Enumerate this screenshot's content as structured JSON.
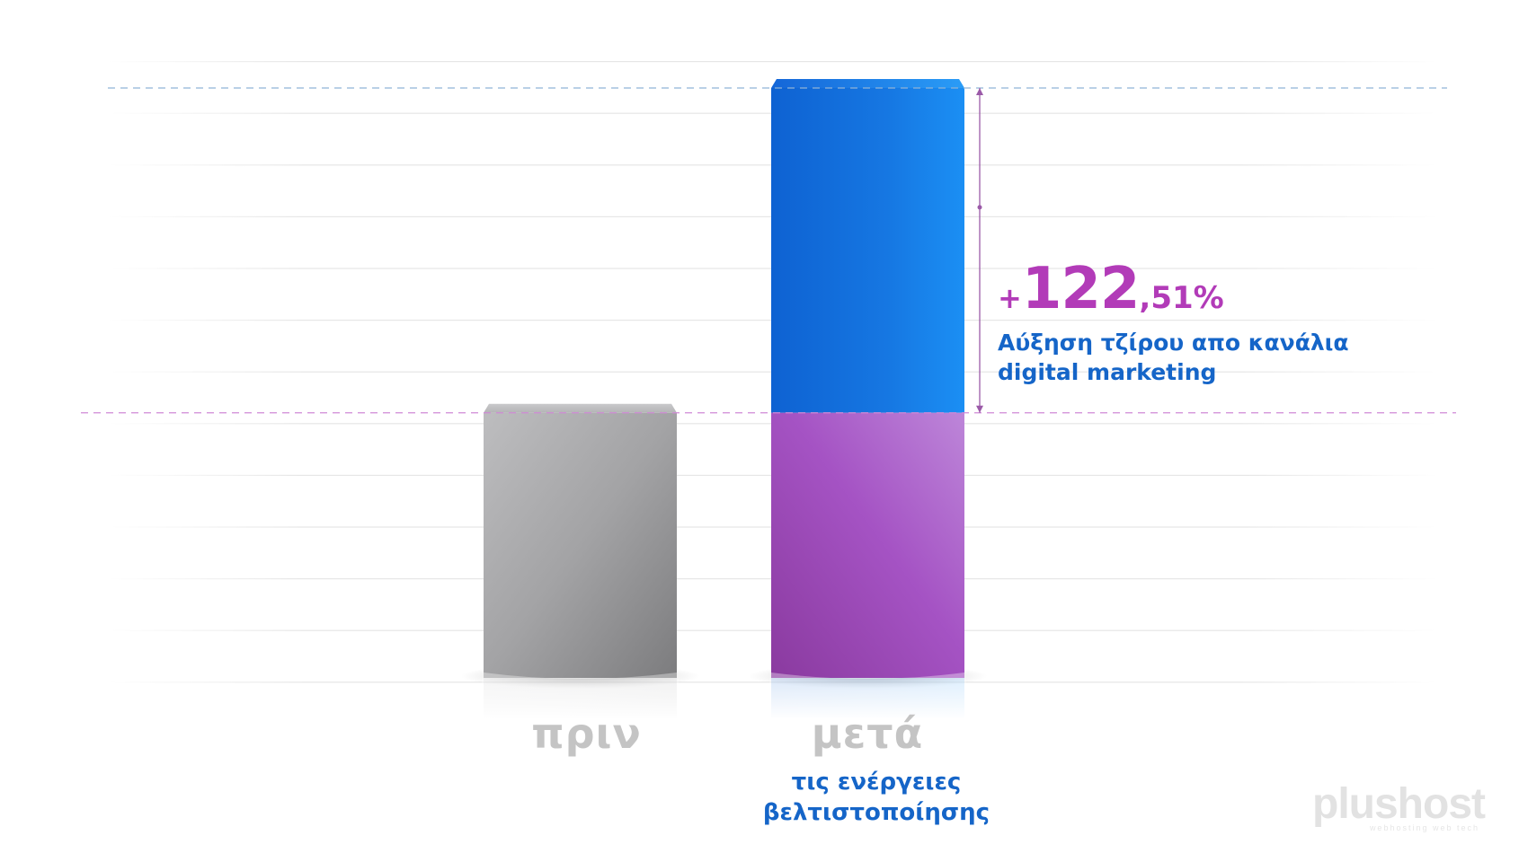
{
  "chart_data": {
    "type": "bar",
    "categories": [
      "πριν",
      "μετά"
    ],
    "values": [
      100,
      222.51
    ],
    "category_sublabels": [
      "",
      "τις ενέργειες βελτιστοποίησης"
    ],
    "annotation": {
      "prefix": "+",
      "integer_part": "122",
      "decimal_part": ",51%",
      "description_line1": "Αύξηση τζίρου απο κανάλια",
      "description_line2": "digital marketing"
    },
    "colors": {
      "before_bar": "#9a9a9c",
      "after_bar_top": "#1b7fe6",
      "after_bar_bottom": "#9c4fc0",
      "annotation_percent": "#b23bb8",
      "annotation_text": "#1565c8",
      "category_label": "#c4c4c4"
    },
    "grid": true,
    "legend": "none"
  },
  "watermark": {
    "text": "plushost",
    "tagline": "webhosting web tech"
  }
}
